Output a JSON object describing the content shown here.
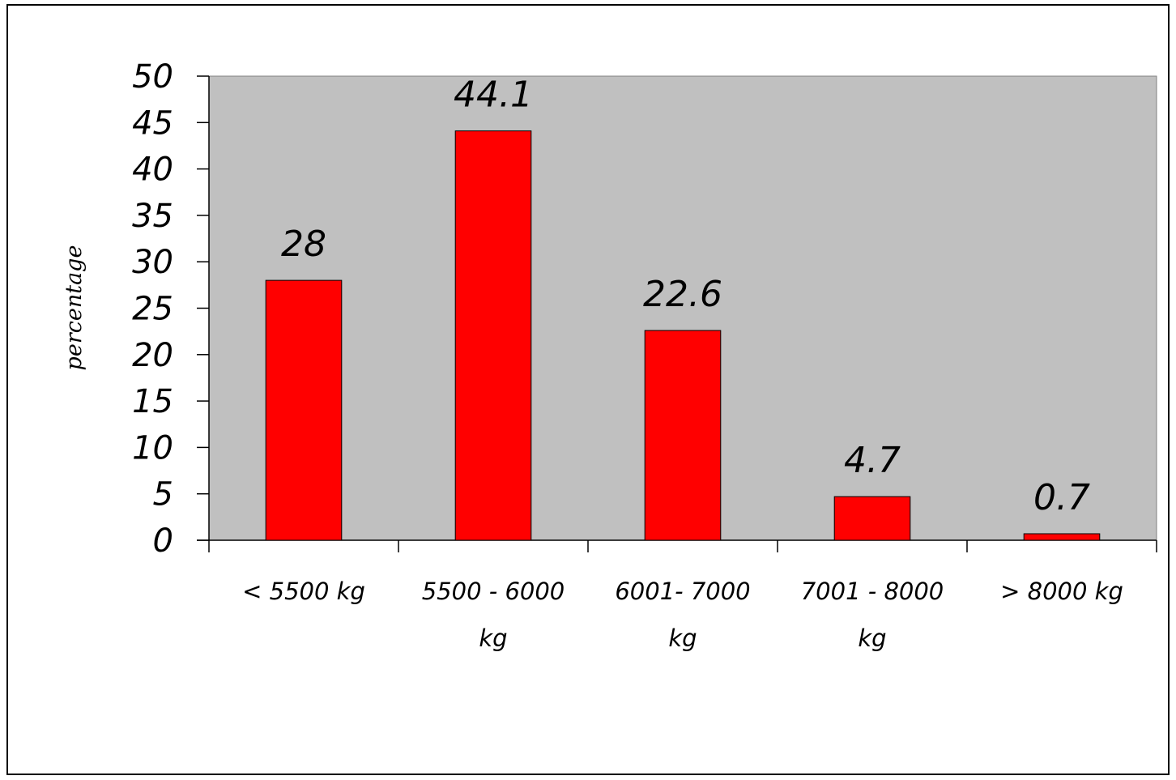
{
  "chart_data": {
    "type": "bar",
    "categories": [
      [
        "< 5500 kg"
      ],
      [
        "5500 - 6000",
        "kg"
      ],
      [
        "6001- 7000",
        "kg"
      ],
      [
        "7001 - 8000",
        "kg"
      ],
      [
        "> 8000 kg"
      ]
    ],
    "values": [
      28,
      44.1,
      22.6,
      4.7,
      0.7
    ],
    "data_labels": [
      "28",
      "44.1",
      "22.6",
      "4.7",
      "0.7"
    ],
    "ylabel": "percentage",
    "ylim": [
      0,
      50
    ],
    "yticks": [
      0,
      5,
      10,
      15,
      20,
      25,
      30,
      35,
      40,
      45,
      50
    ],
    "grid": false,
    "legend": "none",
    "colors": {
      "bar_fill": "#ff0000",
      "plot_background": "#c0c0c0",
      "axis": "#000000"
    }
  }
}
